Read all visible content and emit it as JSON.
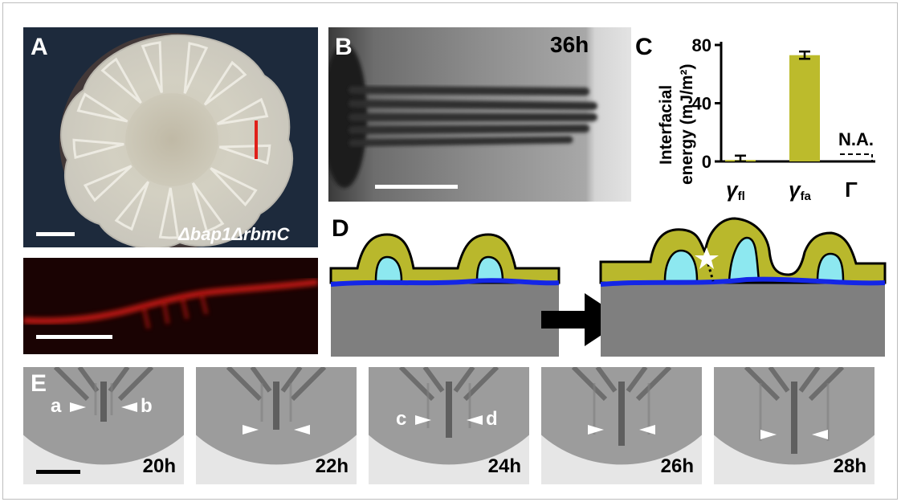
{
  "panelA": {
    "label": "A",
    "genotype": "Δbap1ΔrbmC",
    "colors": {
      "background": "#1d2a3c",
      "colony": "#d7d4c6",
      "marker": "#e0201a",
      "fluorescence": "#d41a14"
    }
  },
  "panelB": {
    "label": "B",
    "time": "36h"
  },
  "panelC": {
    "label": "C",
    "ylabel_line1": "Interfacial",
    "ylabel_line2": "energy (mJ/m²)",
    "yticks": [
      "0",
      "40",
      "80"
    ],
    "na_label": "N.A.",
    "bar_color": "#bcbb2c",
    "chart_data": {
      "type": "bar",
      "categories": [
        "γfl",
        "γfa",
        "Γ"
      ],
      "values": [
        1,
        73,
        null
      ],
      "errors": [
        3,
        2.5,
        null
      ],
      "ylabel": "Interfacial energy (mJ/m²)",
      "ylim": [
        0,
        80
      ]
    },
    "xlabels": [
      {
        "main": "γ",
        "sub": "fl"
      },
      {
        "main": "γ",
        "sub": "fa"
      },
      {
        "main": "Γ",
        "sub": ""
      }
    ]
  },
  "panelD": {
    "label": "D",
    "colors": {
      "film": "#b9b82c",
      "fluid": "#8de8f0",
      "line": "#1426e6",
      "agar": "#7f7f7f"
    }
  },
  "panelE": {
    "label": "E",
    "frames": [
      {
        "time": "20h",
        "left_tag": "a",
        "right_tag": "b"
      },
      {
        "time": "22h",
        "left_tag": "",
        "right_tag": ""
      },
      {
        "time": "24h",
        "left_tag": "c",
        "right_tag": "d"
      },
      {
        "time": "26h",
        "left_tag": "",
        "right_tag": ""
      },
      {
        "time": "28h",
        "left_tag": "",
        "right_tag": ""
      }
    ]
  }
}
